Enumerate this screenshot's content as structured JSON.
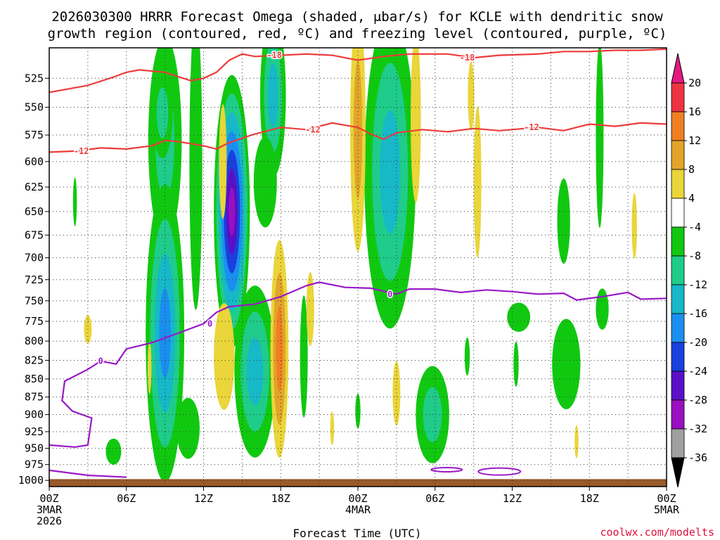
{
  "chart_data": {
    "type": "heatmap",
    "title_line1": "2026030300 HRRR Forecast Omega (shaded, μbar/s) for KCLE with dendritic snow",
    "title_line2": "growth region (contoured, red, ºC) and freezing level (contoured, purple, ºC)",
    "xlabel": "Forecast Time (UTC)",
    "credit": "coolwx.com/modelts",
    "x_range_hours": [
      0,
      48
    ],
    "y_range_hpa": [
      1010,
      500
    ],
    "x_ticks": [
      {
        "hour": 0,
        "label": "00Z",
        "sub1": "3MAR",
        "sub2": "2026"
      },
      {
        "hour": 6,
        "label": "06Z",
        "sub1": "",
        "sub2": ""
      },
      {
        "hour": 12,
        "label": "12Z",
        "sub1": "",
        "sub2": ""
      },
      {
        "hour": 18,
        "label": "18Z",
        "sub1": "",
        "sub2": ""
      },
      {
        "hour": 24,
        "label": "00Z",
        "sub1": "4MAR",
        "sub2": ""
      },
      {
        "hour": 30,
        "label": "06Z",
        "sub1": "",
        "sub2": ""
      },
      {
        "hour": 36,
        "label": "12Z",
        "sub1": "",
        "sub2": ""
      },
      {
        "hour": 42,
        "label": "18Z",
        "sub1": "",
        "sub2": ""
      },
      {
        "hour": 48,
        "label": "00Z",
        "sub1": "5MAR",
        "sub2": ""
      }
    ],
    "y_ticks": [
      525,
      550,
      575,
      600,
      625,
      650,
      675,
      700,
      725,
      750,
      775,
      800,
      825,
      850,
      875,
      900,
      925,
      950,
      975,
      1000
    ],
    "colorbar": {
      "labels": [
        "20",
        "16",
        "12",
        "8",
        "4",
        "-4",
        "-8",
        "-12",
        "-16",
        "-20",
        "-24",
        "-28",
        "-32",
        "-36"
      ],
      "bins": [
        {
          "from": 16,
          "to": 20,
          "color": "#ee3340"
        },
        {
          "from": 12,
          "to": 16,
          "color": "#f07f22"
        },
        {
          "from": 8,
          "to": 12,
          "color": "#e2a52a"
        },
        {
          "from": 4,
          "to": 8,
          "color": "#ead53a"
        },
        {
          "from": -4,
          "to": 4,
          "color": "#ffffff"
        },
        {
          "from": -8,
          "to": -4,
          "color": "#11c811"
        },
        {
          "from": -12,
          "to": -8,
          "color": "#1fcc8a"
        },
        {
          "from": -16,
          "to": -12,
          "color": "#17b8c8"
        },
        {
          "from": -20,
          "to": -16,
          "color": "#1a8ff0"
        },
        {
          "from": -24,
          "to": -20,
          "color": "#1a40dd"
        },
        {
          "from": -28,
          "to": -24,
          "color": "#5a10c8"
        },
        {
          "from": -32,
          "to": -28,
          "color": "#9a0fc0"
        },
        {
          "from": -36,
          "to": -32,
          "color": "#a0a0a0"
        }
      ],
      "top_arrow_color": "#e6197f",
      "bottom_arrow_color": "#000000"
    },
    "series": [
      {
        "name": "minus18",
        "label": "-18",
        "color": "#ee3b3b",
        "points": [
          [
            0,
            537
          ],
          [
            3,
            531
          ],
          [
            5,
            524
          ],
          [
            6,
            520
          ],
          [
            7,
            518
          ],
          [
            9,
            520
          ],
          [
            11,
            527
          ],
          [
            12,
            525
          ],
          [
            13,
            520
          ],
          [
            14,
            510
          ],
          [
            15,
            505
          ],
          [
            16,
            507
          ],
          [
            18,
            506
          ],
          [
            20,
            505
          ],
          [
            22,
            506
          ],
          [
            24,
            510
          ],
          [
            26,
            507
          ],
          [
            28,
            505
          ],
          [
            31,
            505
          ],
          [
            33,
            508
          ],
          [
            35,
            506
          ],
          [
            38,
            505
          ],
          [
            40,
            503
          ],
          [
            42,
            503
          ],
          [
            44,
            502
          ],
          [
            46,
            502
          ],
          [
            48,
            501
          ]
        ],
        "labels_at_hours": [
          17.5,
          32.5
        ]
      },
      {
        "name": "minus12",
        "label": "-12",
        "color": "#ee3b3b",
        "points": [
          [
            0,
            591
          ],
          [
            2,
            590
          ],
          [
            4,
            587
          ],
          [
            6,
            588
          ],
          [
            8,
            585
          ],
          [
            9,
            580
          ],
          [
            10,
            581
          ],
          [
            12,
            585
          ],
          [
            13,
            588
          ],
          [
            14,
            582
          ],
          [
            16,
            574
          ],
          [
            18,
            568
          ],
          [
            20,
            570
          ],
          [
            22,
            564
          ],
          [
            24,
            568
          ],
          [
            25,
            574
          ],
          [
            26,
            579
          ],
          [
            27,
            573
          ],
          [
            29,
            570
          ],
          [
            31,
            572
          ],
          [
            33,
            569
          ],
          [
            35,
            571
          ],
          [
            38,
            568
          ],
          [
            40,
            571
          ],
          [
            42,
            565
          ],
          [
            44,
            567
          ],
          [
            46,
            564
          ],
          [
            48,
            565
          ]
        ],
        "labels_at_hours": [
          2.5,
          20.5,
          37.5
        ]
      },
      {
        "name": "freezing0",
        "label": "0",
        "color": "#9a18c8",
        "points": [
          [
            0,
            945
          ],
          [
            2,
            948
          ],
          [
            3,
            945
          ],
          [
            3.3,
            905
          ],
          [
            1.8,
            895
          ],
          [
            1,
            880
          ],
          [
            1.2,
            853
          ],
          [
            3,
            837
          ],
          [
            4,
            826
          ],
          [
            5.2,
            830
          ],
          [
            6,
            810
          ],
          [
            8,
            802
          ],
          [
            10,
            790
          ],
          [
            12,
            778
          ],
          [
            13,
            764
          ],
          [
            14,
            757
          ],
          [
            16,
            754
          ],
          [
            18,
            745
          ],
          [
            20,
            732
          ],
          [
            21,
            728
          ],
          [
            23,
            734
          ],
          [
            25,
            735
          ],
          [
            27,
            742
          ],
          [
            28,
            736
          ],
          [
            30,
            736
          ],
          [
            32,
            740
          ],
          [
            34,
            737
          ],
          [
            36,
            739
          ],
          [
            38,
            742
          ],
          [
            40,
            741
          ],
          [
            41,
            749
          ],
          [
            43,
            745
          ],
          [
            45,
            740
          ],
          [
            46,
            748
          ],
          [
            48,
            747
          ]
        ],
        "labels_at_hours": [
          12.5,
          26.5,
          4
        ]
      },
      {
        "name": "freezing_sfc",
        "label": "",
        "color": "#9a18c8",
        "points": [
          [
            0,
            984
          ],
          [
            3,
            992
          ],
          [
            6,
            995
          ]
        ],
        "labels_at_hours": []
      }
    ]
  }
}
